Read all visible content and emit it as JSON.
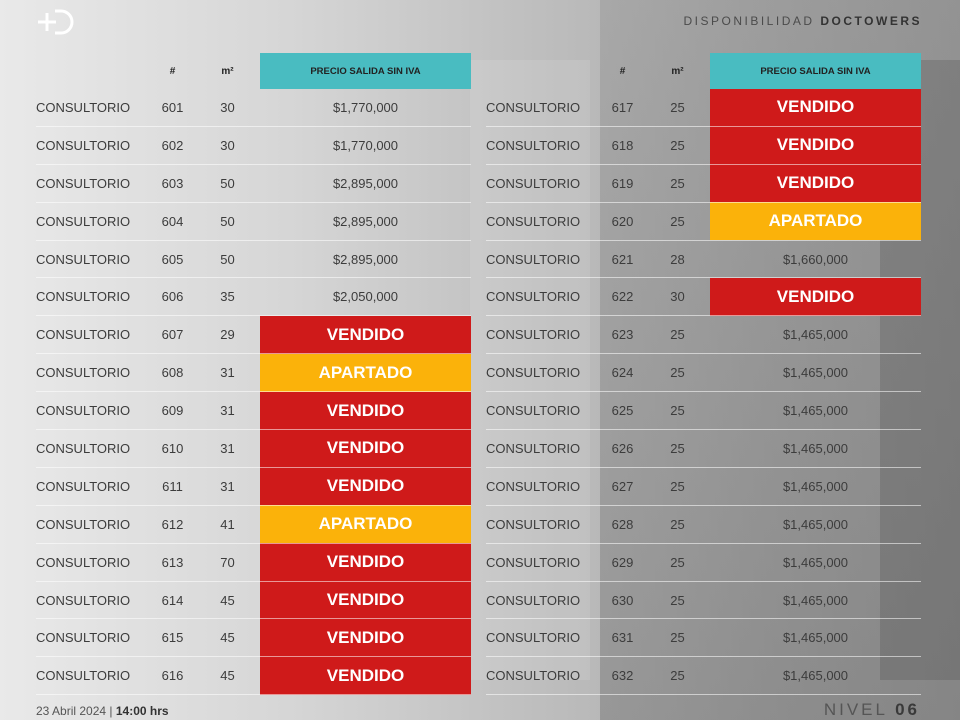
{
  "header": {
    "title_prefix": "DISPONIBILIDAD",
    "title_brand": "DOCTOWERS"
  },
  "columns": {
    "number": "#",
    "area": "m²",
    "price": "PRECIO SALIDA SIN IVA"
  },
  "status_colors": {
    "available": "#49bcc1",
    "sold": "#cf1a1a",
    "reserved": "#fbb20a"
  },
  "left_units": [
    {
      "type": "CONSULTORIO",
      "number": "601",
      "m2": "30",
      "price": "$1,770,000",
      "status": "available"
    },
    {
      "type": "CONSULTORIO",
      "number": "602",
      "m2": "30",
      "price": "$1,770,000",
      "status": "available"
    },
    {
      "type": "CONSULTORIO",
      "number": "603",
      "m2": "50",
      "price": "$2,895,000",
      "status": "available"
    },
    {
      "type": "CONSULTORIO",
      "number": "604",
      "m2": "50",
      "price": "$2,895,000",
      "status": "available"
    },
    {
      "type": "CONSULTORIO",
      "number": "605",
      "m2": "50",
      "price": "$2,895,000",
      "status": "available"
    },
    {
      "type": "CONSULTORIO",
      "number": "606",
      "m2": "35",
      "price": "$2,050,000",
      "status": "available"
    },
    {
      "type": "CONSULTORIO",
      "number": "607",
      "m2": "29",
      "price": "VENDIDO",
      "status": "sold"
    },
    {
      "type": "CONSULTORIO",
      "number": "608",
      "m2": "31",
      "price": "APARTADO",
      "status": "reserved"
    },
    {
      "type": "CONSULTORIO",
      "number": "609",
      "m2": "31",
      "price": "VENDIDO",
      "status": "sold"
    },
    {
      "type": "CONSULTORIO",
      "number": "610",
      "m2": "31",
      "price": "VENDIDO",
      "status": "sold"
    },
    {
      "type": "CONSULTORIO",
      "number": "611",
      "m2": "31",
      "price": "VENDIDO",
      "status": "sold"
    },
    {
      "type": "CONSULTORIO",
      "number": "612",
      "m2": "41",
      "price": "APARTADO",
      "status": "reserved"
    },
    {
      "type": "CONSULTORIO",
      "number": "613",
      "m2": "70",
      "price": "VENDIDO",
      "status": "sold"
    },
    {
      "type": "CONSULTORIO",
      "number": "614",
      "m2": "45",
      "price": "VENDIDO",
      "status": "sold"
    },
    {
      "type": "CONSULTORIO",
      "number": "615",
      "m2": "45",
      "price": "VENDIDO",
      "status": "sold"
    },
    {
      "type": "CONSULTORIO",
      "number": "616",
      "m2": "45",
      "price": "VENDIDO",
      "status": "sold"
    }
  ],
  "right_units": [
    {
      "type": "CONSULTORIO",
      "number": "617",
      "m2": "25",
      "price": "VENDIDO",
      "status": "sold"
    },
    {
      "type": "CONSULTORIO",
      "number": "618",
      "m2": "25",
      "price": "VENDIDO",
      "status": "sold"
    },
    {
      "type": "CONSULTORIO",
      "number": "619",
      "m2": "25",
      "price": "VENDIDO",
      "status": "sold"
    },
    {
      "type": "CONSULTORIO",
      "number": "620",
      "m2": "25",
      "price": "APARTADO",
      "status": "reserved"
    },
    {
      "type": "CONSULTORIO",
      "number": "621",
      "m2": "28",
      "price": "$1,660,000",
      "status": "available"
    },
    {
      "type": "CONSULTORIO",
      "number": "622",
      "m2": "30",
      "price": "VENDIDO",
      "status": "sold"
    },
    {
      "type": "CONSULTORIO",
      "number": "623",
      "m2": "25",
      "price": "$1,465,000",
      "status": "available"
    },
    {
      "type": "CONSULTORIO",
      "number": "624",
      "m2": "25",
      "price": "$1,465,000",
      "status": "available"
    },
    {
      "type": "CONSULTORIO",
      "number": "625",
      "m2": "25",
      "price": "$1,465,000",
      "status": "available"
    },
    {
      "type": "CONSULTORIO",
      "number": "626",
      "m2": "25",
      "price": "$1,465,000",
      "status": "available"
    },
    {
      "type": "CONSULTORIO",
      "number": "627",
      "m2": "25",
      "price": "$1,465,000",
      "status": "available"
    },
    {
      "type": "CONSULTORIO",
      "number": "628",
      "m2": "25",
      "price": "$1,465,000",
      "status": "available"
    },
    {
      "type": "CONSULTORIO",
      "number": "629",
      "m2": "25",
      "price": "$1,465,000",
      "status": "available"
    },
    {
      "type": "CONSULTORIO",
      "number": "630",
      "m2": "25",
      "price": "$1,465,000",
      "status": "available"
    },
    {
      "type": "CONSULTORIO",
      "number": "631",
      "m2": "25",
      "price": "$1,465,000",
      "status": "available"
    },
    {
      "type": "CONSULTORIO",
      "number": "632",
      "m2": "25",
      "price": "$1,465,000",
      "status": "available"
    }
  ],
  "footer": {
    "date": "23 Abril 2024 |",
    "time": "14:00 hrs",
    "level_label": "NIVEL",
    "level_number": "06"
  },
  "logo": {
    "icon": "doctowers-logo-icon"
  }
}
